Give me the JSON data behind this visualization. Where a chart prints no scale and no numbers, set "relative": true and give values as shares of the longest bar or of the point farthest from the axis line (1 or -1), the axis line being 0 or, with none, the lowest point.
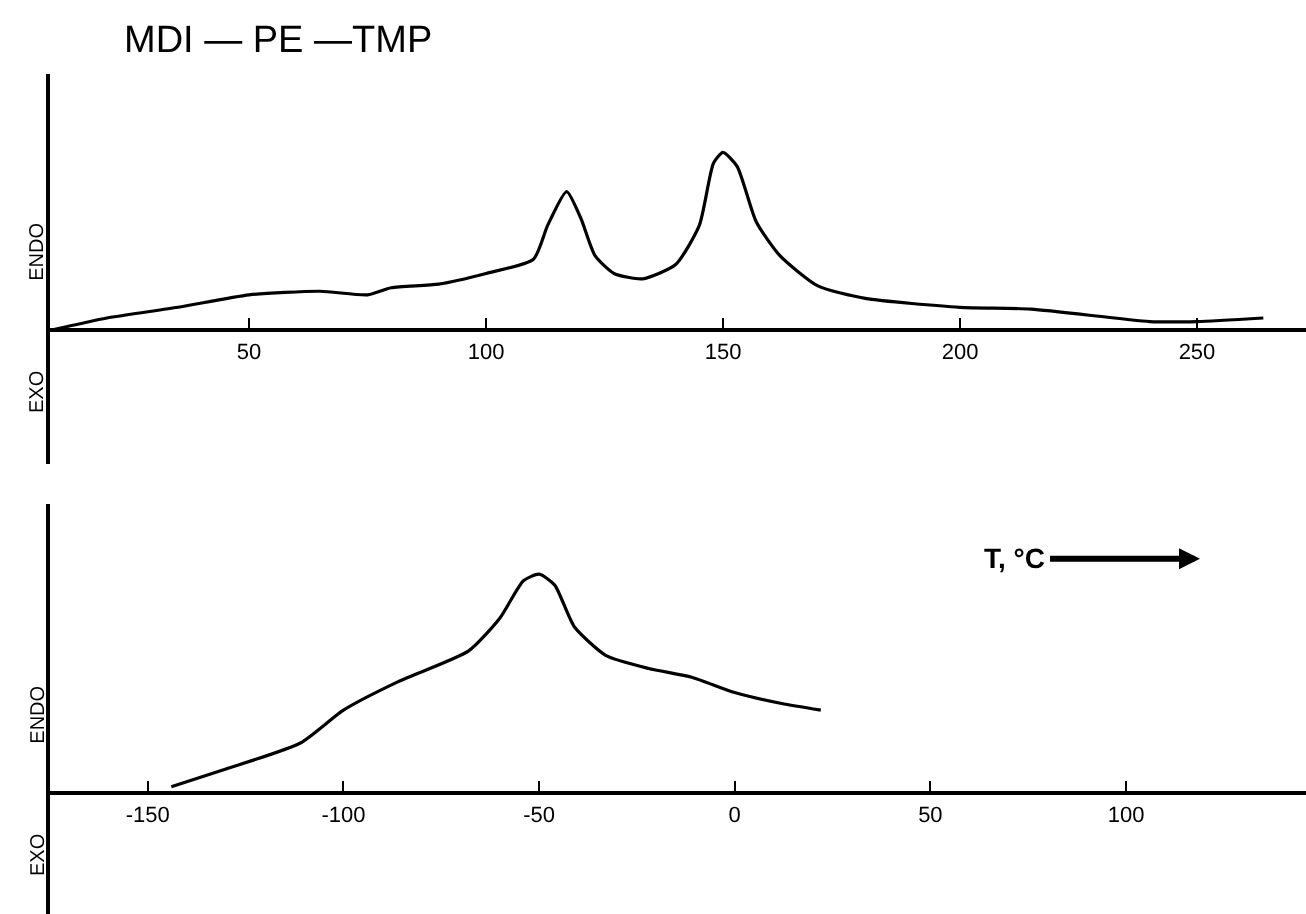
{
  "chart_data": [
    {
      "type": "line",
      "title": "MDI — PE —TMP",
      "relative": true,
      "tick_labels": "x",
      "marker": "none",
      "line_style": "solid",
      "xlim": [
        8,
        273
      ],
      "xticks": [
        50,
        100,
        150,
        200,
        250
      ],
      "annotations": [
        "ENDO",
        "EXO"
      ],
      "series": [
        {
          "color": "#000000",
          "x": [
            8,
            20,
            35,
            50,
            65,
            75,
            80,
            90,
            100,
            110,
            113,
            117,
            120,
            123,
            127,
            133,
            140,
            145,
            148,
            150,
            153,
            157,
            162,
            170,
            180,
            200,
            215,
            240,
            250,
            264
          ],
          "values": [
            0,
            0.07,
            0.13,
            0.2,
            0.22,
            0.2,
            0.24,
            0.26,
            0.32,
            0.4,
            0.59,
            0.78,
            0.63,
            0.42,
            0.32,
            0.29,
            0.37,
            0.59,
            0.94,
            1,
            0.92,
            0.61,
            0.42,
            0.25,
            0.18,
            0.13,
            0.12,
            0.05,
            0.05,
            0.07
          ]
        }
      ]
    },
    {
      "type": "line",
      "relative": true,
      "tick_labels": "x",
      "marker": "none",
      "line_style": "solid",
      "xlim": [
        -175,
        146
      ],
      "xticks": [
        -150,
        -100,
        -50,
        0,
        50,
        100
      ],
      "annotations": [
        "ENDO",
        "EXO",
        "T, °C"
      ],
      "series": [
        {
          "color": "#000000",
          "x": [
            -144,
            -132,
            -111,
            -100,
            -86,
            -68,
            -60,
            -54,
            -50,
            -46,
            -41,
            -33,
            -22,
            -11,
            0,
            12,
            22
          ],
          "values": [
            0.03,
            0.1,
            0.23,
            0.38,
            0.51,
            0.65,
            0.8,
            0.97,
            1,
            0.95,
            0.76,
            0.63,
            0.57,
            0.53,
            0.46,
            0.41,
            0.38
          ]
        }
      ]
    }
  ]
}
